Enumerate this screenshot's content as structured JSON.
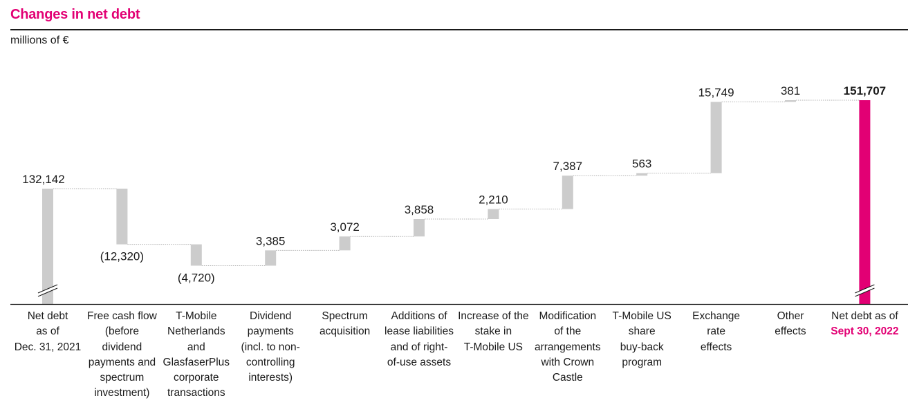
{
  "title": "Changes in net debt",
  "unit_label": "millions of €",
  "colors": {
    "brand": "#E20074",
    "bar": "#CCCCCC",
    "text": "#1a1a1a",
    "connector": "#b0b0b0"
  },
  "chart_data": {
    "type": "waterfall",
    "title": "Changes in net debt",
    "ylabel": "millions of €",
    "ylim": [
      116000,
      155000
    ],
    "axis_break": true,
    "categories": [
      {
        "label": "Net debt\nas of\nDec. 31, 2021"
      },
      {
        "label": "Free cash flow\n(before\ndividend\npayments and\nspectrum\ninvestment)"
      },
      {
        "label": "T-Mobile\nNetherlands\nand\nGlasfaserPlus\ncorporate\ntransactions"
      },
      {
        "label": "Dividend\npayments\n(incl. to non-\ncontrolling\ninterests)"
      },
      {
        "label": "Spectrum\nacquisition"
      },
      {
        "label": "Additions of\nlease liabilities\nand of right-\nof-use assets"
      },
      {
        "label": "Increase of the\nstake in\nT-Mobile US"
      },
      {
        "label": "Modification\nof the\narrangements\nwith Crown\nCastle"
      },
      {
        "label": "T-Mobile US\nshare\nbuy-back\nprogram"
      },
      {
        "label": "Exchange\nrate\neffects"
      },
      {
        "label": "Other\neffects"
      },
      {
        "label": "Net debt as of",
        "highlight": "Sept 30, 2022"
      }
    ],
    "values": [
      132142,
      -12320,
      -4720,
      3385,
      3072,
      3858,
      2210,
      7387,
      563,
      15749,
      381,
      151707
    ],
    "value_labels": [
      "132,142",
      "(12,320)",
      "(4,720)",
      "3,385",
      "3,072",
      "3,858",
      "2,210",
      "7,387",
      "563",
      "15,749",
      "381",
      "151,707"
    ],
    "measures": [
      "total",
      "relative",
      "relative",
      "relative",
      "relative",
      "relative",
      "relative",
      "relative",
      "relative",
      "relative",
      "relative",
      "total"
    ]
  }
}
